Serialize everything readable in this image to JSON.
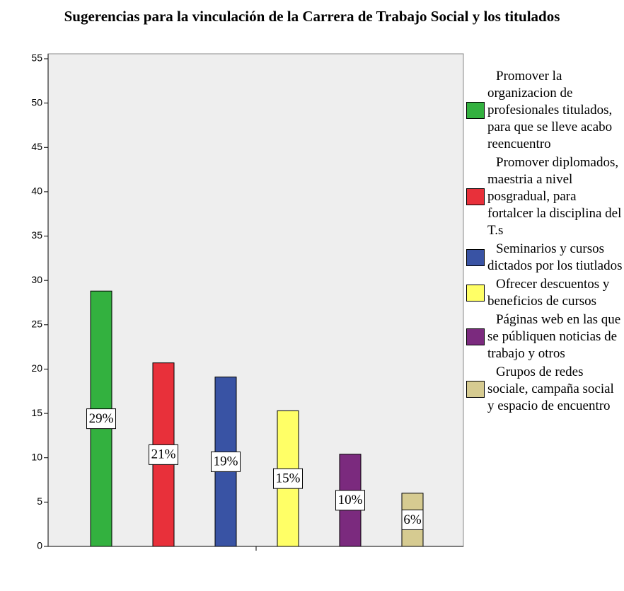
{
  "chart_data": {
    "type": "bar",
    "title": "Sugerencias para la vinculación de la Carrera de Trabajo Social y los titulados",
    "categories": [
      null,
      null,
      null,
      null,
      null,
      null
    ],
    "series": [
      {
        "name": "Promover la organizacion de profesionales titulados, para que se lleve acabo reencuentro",
        "color": "#33b13f"
      },
      {
        "name": "Promover diplomados, maestria a nivel posgradual, para fortalcer la disciplina del T.s",
        "color": "#e8303a"
      },
      {
        "name": "Seminarios y cursos dictados por los tiutlados",
        "color": "#3953a4"
      },
      {
        "name": "Ofrecer descuentos y beneficios de cursos",
        "color": "#ffff66"
      },
      {
        "name": "Páginas web en las que se públiquen noticias de trabajo y otros",
        "color": "#7b2a7e"
      },
      {
        "name": "Grupos de redes sociale, campaña social y espacio de encuentro",
        "color": "#d6cb91"
      }
    ],
    "values": [
      28.8,
      20.7,
      19.1,
      15.3,
      10.4,
      6.0
    ],
    "value_labels": [
      "29%",
      "21%",
      "19%",
      "15%",
      "10%",
      "6%"
    ],
    "ylim": [
      0,
      55
    ],
    "yticks": [
      0,
      5,
      10,
      15,
      20,
      25,
      30,
      35,
      40,
      45,
      50,
      55
    ],
    "grid": false
  }
}
